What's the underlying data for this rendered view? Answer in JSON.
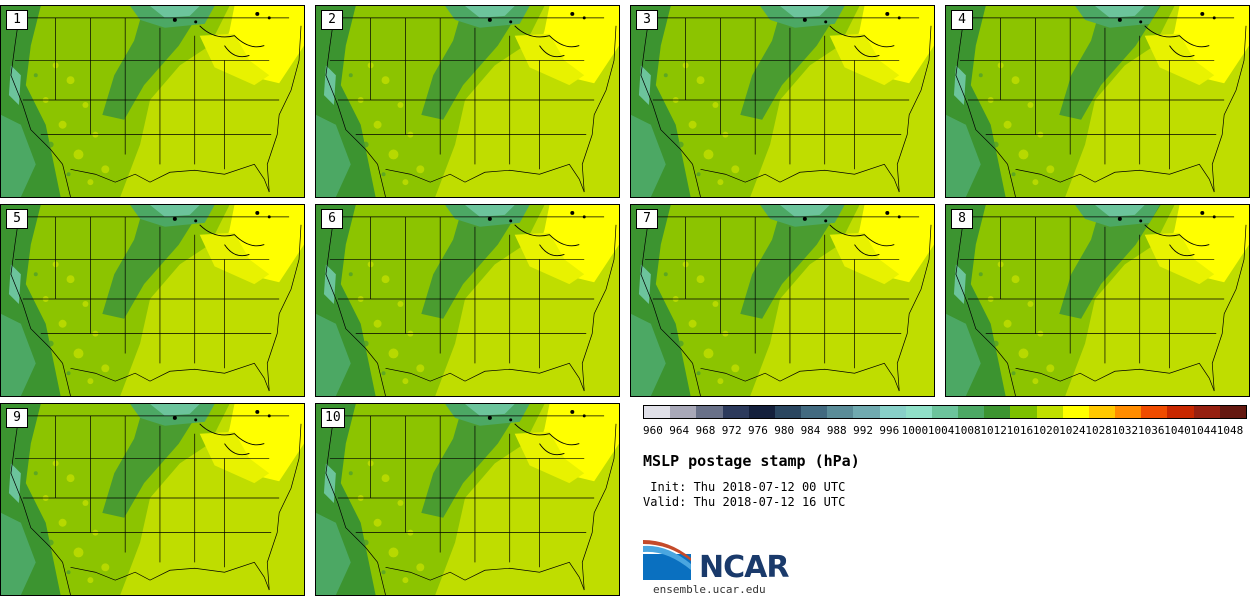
{
  "panels": [
    {
      "label": "1"
    },
    {
      "label": "2"
    },
    {
      "label": "3"
    },
    {
      "label": "4"
    },
    {
      "label": "5"
    },
    {
      "label": "6"
    },
    {
      "label": "7"
    },
    {
      "label": "8"
    },
    {
      "label": "9"
    },
    {
      "label": "10"
    }
  ],
  "colorbar": {
    "ticks": [
      "960",
      "964",
      "968",
      "972",
      "976",
      "980",
      "984",
      "988",
      "992",
      "996",
      "1000",
      "1004",
      "1008",
      "1012",
      "1016",
      "1020",
      "1024",
      "1028",
      "1032",
      "1036",
      "1040",
      "1044",
      "1048"
    ],
    "colors": [
      "#e0e0e8",
      "#a8a8b8",
      "#687088",
      "#2c3a5c",
      "#14203c",
      "#2a4660",
      "#426a80",
      "#5a8c98",
      "#70aab0",
      "#88d0c8",
      "#90e0c8",
      "#6cc49c",
      "#4ca864",
      "#3c9430",
      "#7cc000",
      "#c0e000",
      "#ffff00",
      "#ffc800",
      "#ff8c00",
      "#f04c00",
      "#c82800",
      "#962010",
      "#641810"
    ]
  },
  "title": "MSLP postage stamp (hPa)",
  "init": " Init: Thu 2018-07-12 00 UTC",
  "valid": "Valid: Thu 2018-07-12 16 UTC",
  "logo": {
    "text": "NCAR",
    "url": "ensemble.ucar.edu"
  }
}
